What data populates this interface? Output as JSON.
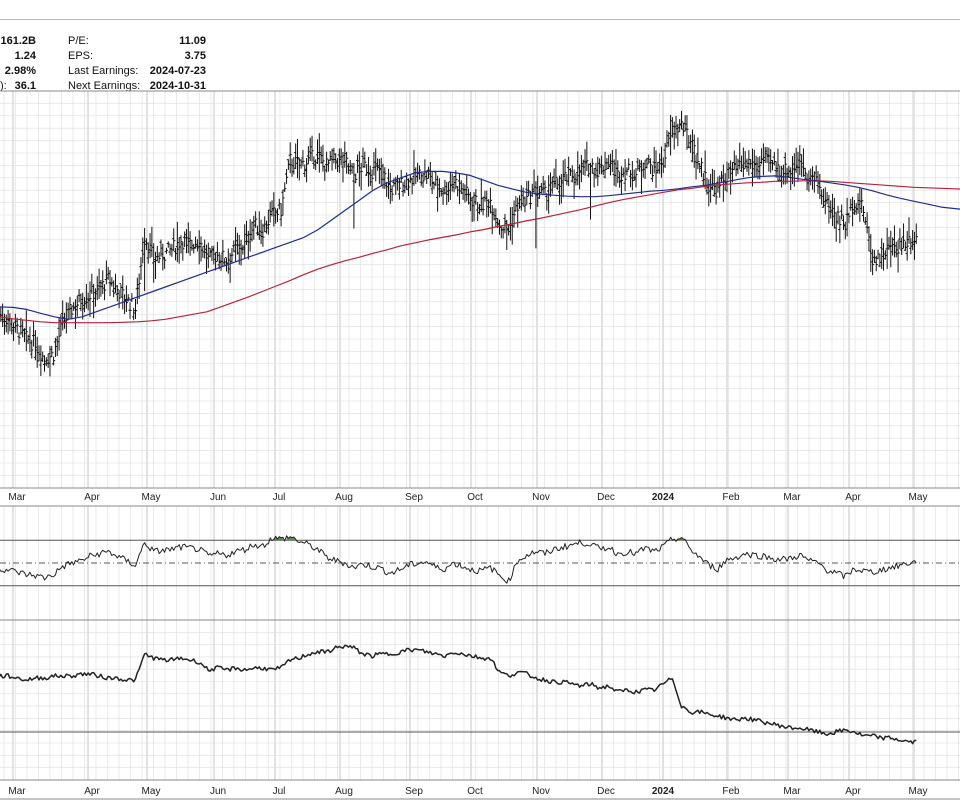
{
  "fundamentals": {
    "left": [
      {
        "value": "161.2B"
      },
      {
        "value": "1.24"
      },
      {
        "value": "2.98%"
      },
      {
        "label_tail": "):",
        "value": "36.1"
      }
    ],
    "right": [
      {
        "label": "P/E:",
        "value": "11.09"
      },
      {
        "label": "EPS:",
        "value": "3.75"
      },
      {
        "label": "Last Earnings:",
        "value": "2024-07-23"
      },
      {
        "label": "Next Earnings:",
        "value": "2024-10-31"
      }
    ]
  },
  "colors": {
    "price_bars": "#111111",
    "ma_short": "#1f2d8a",
    "ma_long": "#b3243b",
    "rsi_line": "#222222",
    "rsi_overbought_fill": "#4d7a3a",
    "rsi_oversold_fill": "#9c2a4e",
    "grid": "#dddddd",
    "border": "#888888"
  },
  "chart_data": [
    {
      "type": "ohlc",
      "panel": "price",
      "series": [
        {
          "kind": "price-bars"
        },
        {
          "kind": "moving-average-short"
        },
        {
          "kind": "moving-average-long"
        }
      ],
      "x_tick_labels": [
        "Mar",
        "Apr",
        "May",
        "Jun",
        "Jul",
        "Aug",
        "Sep",
        "Oct",
        "Nov",
        "Dec",
        "2024",
        "Feb",
        "Mar",
        "Apr",
        "May"
      ],
      "x_tick_bold": [
        false,
        false,
        false,
        false,
        false,
        false,
        false,
        false,
        false,
        false,
        true,
        false,
        false,
        false,
        false
      ],
      "grid": true,
      "weekly_closes": [
        55,
        54,
        52,
        50,
        49,
        46,
        47,
        53,
        56,
        58,
        59,
        60,
        62,
        60,
        58,
        56,
        71,
        66,
        67,
        68,
        70,
        69,
        70,
        66,
        67,
        66,
        68,
        69,
        73,
        72,
        75,
        76,
        86,
        85,
        86,
        87,
        85,
        86,
        86,
        83,
        85,
        84,
        84,
        80,
        81,
        82,
        83,
        83,
        81,
        80,
        82,
        80,
        78,
        77,
        78,
        73,
        72,
        77,
        78,
        80,
        79,
        81,
        82,
        83,
        84,
        85,
        84,
        86,
        83,
        84,
        83,
        86,
        84,
        86,
        92,
        93,
        90,
        85,
        81,
        80,
        83,
        84,
        85,
        85,
        86,
        85,
        84,
        84,
        86,
        83,
        81,
        77,
        75,
        73,
        78,
        76,
        66,
        67,
        68,
        69,
        70,
        71
      ],
      "ma_short": [
        56.5,
        56.4,
        56,
        55.2,
        54.5,
        54,
        54.5,
        55.5,
        56.5,
        57.5,
        58.5,
        59.5,
        60.5,
        61.5,
        62.5,
        63.5,
        64.5,
        65.5,
        66.5,
        67.5,
        68.5,
        69.5,
        70.5,
        72,
        74,
        76,
        78,
        80,
        81.5,
        82.5,
        83.5,
        83.8,
        83.8,
        83.5,
        83,
        82,
        81,
        80.3,
        79.6,
        79.2,
        79,
        78.8,
        78.7,
        78.7,
        78.9,
        79.2,
        79.5,
        79.8,
        80,
        80.3,
        80.7,
        81,
        81.5,
        82,
        82.5,
        82.8,
        82.9,
        82.6,
        82.2,
        81.9,
        81.5,
        81.1,
        80.6,
        79.9,
        79.1,
        78.4,
        77.8,
        77.2,
        76.6,
        76.3,
        76
      ],
      "ma_long": [
        54.5,
        54.1,
        53.8,
        53.5,
        53.3,
        53.3,
        53.3,
        53.3,
        53.3,
        53.4,
        53.5,
        53.7,
        54,
        54.5,
        55,
        55.5,
        56.5,
        57.5,
        58.5,
        59.6,
        60.7,
        61.8,
        63,
        64.1,
        65,
        65.8,
        66.5,
        67.3,
        68,
        68.8,
        69.4,
        70,
        70.5,
        71,
        71.6,
        72.1,
        72.7,
        73.2,
        73.8,
        74.3,
        74.9,
        75.5,
        76.1,
        76.8,
        77.5,
        78.1,
        78.6,
        79.1,
        79.6,
        80.1,
        80.4,
        80.8,
        81.1,
        81.3,
        81.5,
        81.6,
        81.8,
        81.8,
        81.9,
        81.9,
        81.8,
        81.6,
        81.4,
        81.2,
        81,
        80.8,
        80.6,
        80.5,
        80.4,
        80.3,
        80.2
      ],
      "earnings_gap_weeks": [
        16,
        39,
        59,
        65
      ]
    },
    {
      "type": "line",
      "panel": "rsi",
      "reference_lines": [
        70,
        50,
        30
      ],
      "ylim": [
        0,
        100
      ],
      "x_tick_labels": [],
      "grid": true,
      "weekly_values": [
        45,
        44,
        42,
        40,
        39,
        37,
        40,
        47,
        50,
        52,
        56,
        58,
        60,
        56,
        52,
        48,
        68,
        60,
        61,
        62,
        64,
        63,
        62,
        56,
        58,
        57,
        60,
        62,
        66,
        65,
        72,
        71,
        73,
        69,
        66,
        62,
        55,
        52,
        50,
        46,
        49,
        47,
        45,
        41,
        44,
        48,
        50,
        51,
        46,
        45,
        50,
        47,
        44,
        43,
        46,
        39,
        34,
        52,
        57,
        60,
        58,
        62,
        64,
        66,
        68,
        67,
        62,
        64,
        58,
        60,
        58,
        63,
        60,
        64,
        71,
        72,
        62,
        55,
        48,
        45,
        53,
        55,
        58,
        57,
        56,
        54,
        53,
        54,
        57,
        52,
        50,
        44,
        41,
        38,
        45,
        43,
        42,
        44,
        46,
        48,
        50,
        51
      ]
    },
    {
      "type": "line",
      "panel": "relative-strength",
      "reference_lines": [
        "baseline"
      ],
      "grid": true,
      "x_tick_labels": [
        "Mar",
        "Apr",
        "May",
        "Jun",
        "Jul",
        "Aug",
        "Sep",
        "Oct",
        "Nov",
        "Dec",
        "2024",
        "Feb",
        "Mar",
        "Apr",
        "May"
      ],
      "x_tick_bold": [
        false,
        false,
        false,
        false,
        false,
        false,
        false,
        false,
        false,
        false,
        true,
        false,
        false,
        false,
        false
      ],
      "weekly_values": [
        62,
        62,
        61,
        60,
        61,
        61,
        62,
        62,
        62,
        63,
        63,
        62,
        61,
        61,
        60,
        60,
        73,
        71,
        70,
        70,
        71,
        70,
        69,
        65,
        66,
        65,
        66,
        65,
        66,
        66,
        65,
        66,
        70,
        71,
        73,
        74,
        74,
        76,
        77,
        76,
        73,
        72,
        73,
        73,
        74,
        75,
        75,
        74,
        73,
        72,
        74,
        73,
        72,
        71,
        71,
        64,
        62,
        64,
        63,
        61,
        60,
        59,
        59,
        58,
        57,
        58,
        56,
        57,
        54,
        55,
        54,
        55,
        55,
        58,
        61,
        47,
        44,
        44,
        43,
        42,
        41,
        40,
        41,
        40,
        39,
        38,
        37,
        36,
        36,
        35,
        34,
        33,
        34,
        35,
        34,
        32,
        32,
        31,
        31,
        30,
        29,
        29
      ]
    }
  ]
}
